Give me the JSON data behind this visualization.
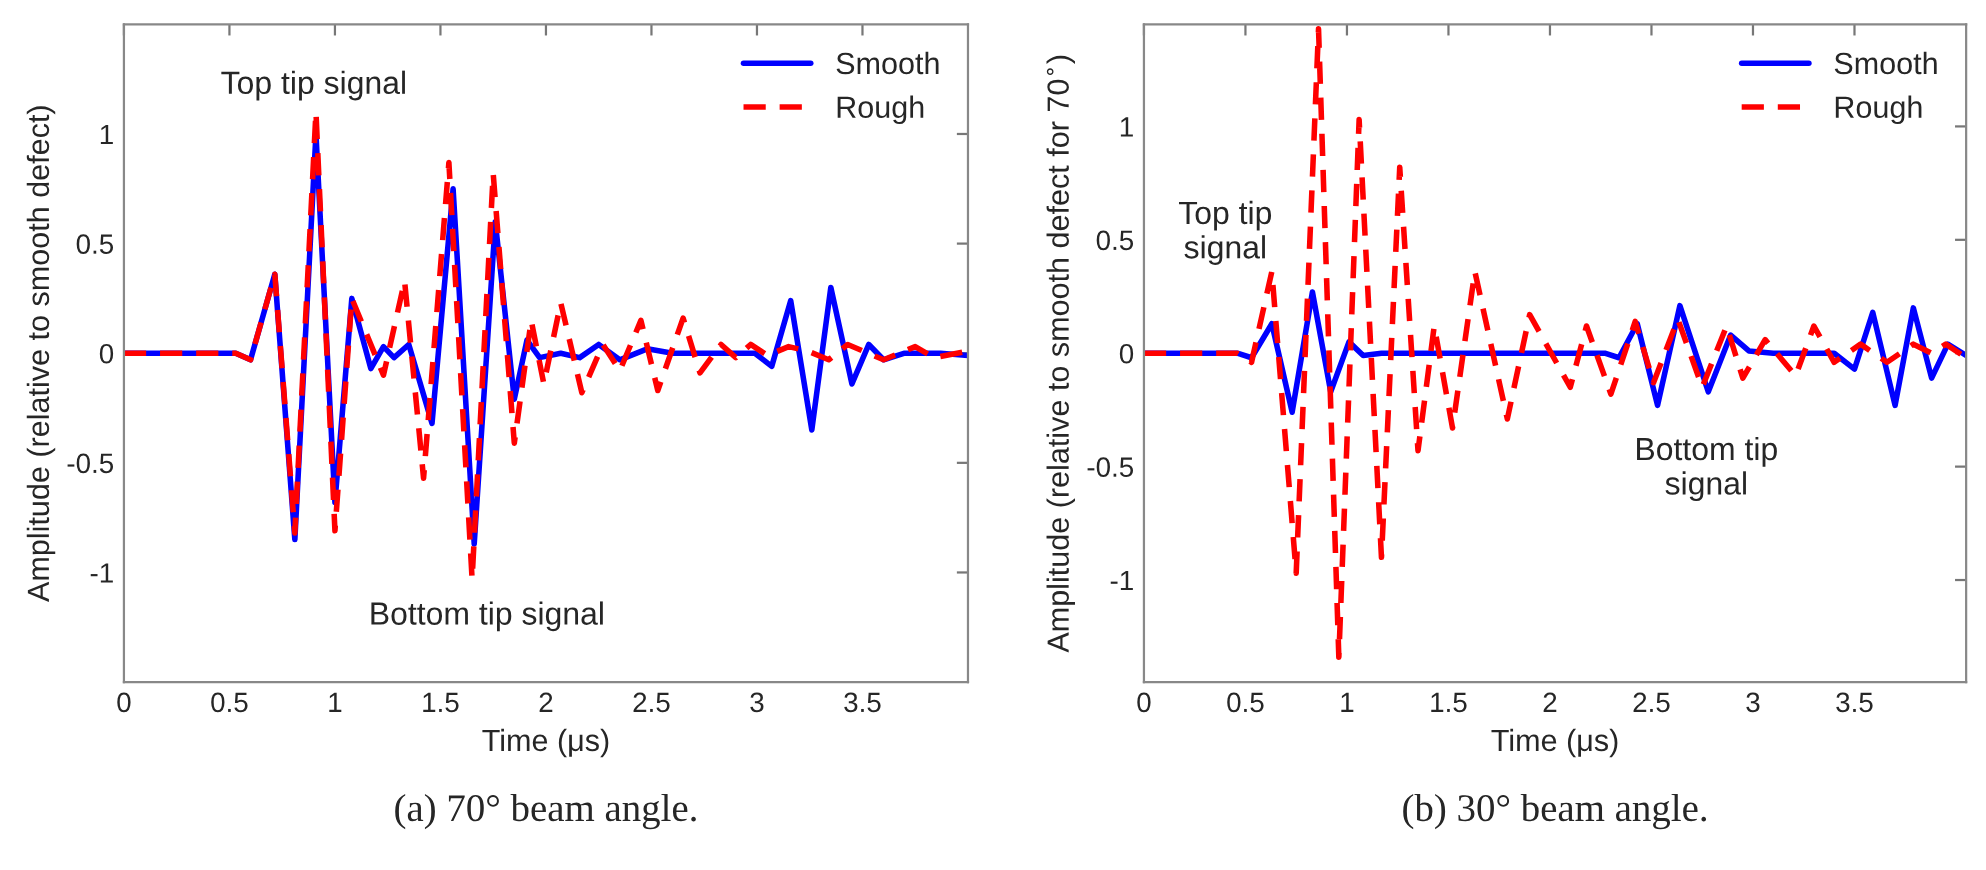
{
  "chart_data": [
    {
      "type": "line",
      "xlabel": "Time (μs)",
      "ylabel": "Amplitude (relative to smooth defect)",
      "xlim": [
        0,
        4
      ],
      "ylim": [
        -1.5,
        1.5
      ],
      "xticks": [
        0,
        0.5,
        1,
        1.5,
        2,
        2.5,
        3,
        3.5
      ],
      "yticks": [
        -1,
        -0.5,
        0,
        0.5,
        1
      ],
      "grid": false,
      "legend": "top right",
      "annotations": [
        "Top tip signal",
        "Bottom tip signal",
        "(a) 70° beam angle."
      ],
      "series": [
        {
          "name": "Smooth",
          "color": "#0000ff",
          "line_style": "solid",
          "x": [
            0,
            0.53,
            0.6,
            0.715,
            0.81,
            0.91,
            1.0,
            1.08,
            1.17,
            1.23,
            1.28,
            1.35,
            1.46,
            1.56,
            1.66,
            1.76,
            1.85,
            1.91,
            1.97,
            2.07,
            2.16,
            2.25,
            2.35,
            2.48,
            2.6,
            2.99,
            3.07,
            3.16,
            3.26,
            3.35,
            3.45,
            3.53,
            3.6,
            3.7,
            3.87,
            4.0
          ],
          "values": [
            0,
            0,
            -0.03,
            0.36,
            -0.85,
            1.0,
            -0.68,
            0.25,
            -0.07,
            0.03,
            -0.02,
            0.04,
            -0.32,
            0.75,
            -0.87,
            0.6,
            -0.21,
            0.06,
            -0.02,
            0,
            -0.02,
            0.04,
            -0.03,
            0.02,
            0,
            0,
            -0.06,
            0.24,
            -0.35,
            0.3,
            -0.14,
            0.04,
            -0.03,
            0,
            0,
            -0.01
          ]
        },
        {
          "name": "Rough",
          "color": "#ff0000",
          "line_style": "dashed",
          "x": [
            0,
            0.53,
            0.6,
            0.715,
            0.81,
            0.91,
            1.0,
            1.08,
            1.23,
            1.33,
            1.42,
            1.54,
            1.65,
            1.75,
            1.85,
            1.93,
            1.99,
            2.07,
            2.17,
            2.27,
            2.35,
            2.45,
            2.53,
            2.65,
            2.73,
            2.83,
            2.9,
            2.97,
            3.05,
            3.15,
            3.24,
            3.34,
            3.43,
            3.6,
            3.75,
            3.84,
            4.0
          ],
          "values": [
            0,
            0,
            -0.03,
            0.36,
            -0.82,
            1.1,
            -0.81,
            0.25,
            -0.1,
            0.33,
            -0.57,
            0.87,
            -1.03,
            0.82,
            -0.41,
            0.15,
            -0.14,
            0.23,
            -0.18,
            0.04,
            -0.08,
            0.15,
            -0.17,
            0.16,
            -0.09,
            0.04,
            -0.02,
            0.04,
            -0.01,
            0.03,
            0.01,
            -0.03,
            0.04,
            -0.03,
            0.03,
            -0.02,
            0.01
          ]
        }
      ]
    },
    {
      "type": "line",
      "xlabel": "Time (μs)",
      "ylabel": "Amplitude (relative to smooth defect for 70$^{∘}$)",
      "xlim": [
        0,
        4.05
      ],
      "ylim": [
        -1.45,
        1.45
      ],
      "xticks": [
        0,
        0.5,
        1,
        1.5,
        2,
        2.5,
        3,
        3.5
      ],
      "yticks": [
        -1,
        -0.5,
        0,
        0.5,
        1
      ],
      "grid": false,
      "legend": "top right",
      "annotations": [
        "Top tip\nsignal",
        "Bottom tip\nsignal",
        "(b) 30° beam angle."
      ],
      "series": [
        {
          "name": "Smooth",
          "color": "#0000ff",
          "line_style": "solid",
          "x": [
            0,
            0.46,
            0.53,
            0.63,
            0.73,
            0.83,
            0.92,
            1.01,
            1.08,
            1.17,
            2.27,
            2.34,
            2.43,
            2.53,
            2.64,
            2.78,
            2.89,
            2.98,
            3.1,
            3.4,
            3.5,
            3.59,
            3.7,
            3.79,
            3.88,
            3.96,
            4.05
          ],
          "values": [
            0,
            0,
            -0.02,
            0.13,
            -0.26,
            0.27,
            -0.17,
            0.05,
            -0.01,
            0,
            0,
            -0.02,
            0.13,
            -0.23,
            0.21,
            -0.17,
            0.08,
            0.01,
            0,
            0,
            -0.07,
            0.18,
            -0.23,
            0.2,
            -0.11,
            0.04,
            -0.01
          ]
        },
        {
          "name": "Rough",
          "color": "#ff0000",
          "line_style": "dashed",
          "x": [
            0,
            0.46,
            0.53,
            0.63,
            0.75,
            0.86,
            0.96,
            1.06,
            1.17,
            1.26,
            1.35,
            1.43,
            1.52,
            1.63,
            1.79,
            1.9,
            2.1,
            2.18,
            2.3,
            2.42,
            2.51,
            2.63,
            2.75,
            2.87,
            2.95,
            3.06,
            3.21,
            3.3,
            3.4,
            3.53,
            3.66,
            3.79,
            3.88,
            3.95,
            4.05
          ],
          "values": [
            0,
            0,
            -0.04,
            0.36,
            -0.97,
            1.43,
            -1.34,
            1.03,
            -0.9,
            0.82,
            -0.43,
            0.12,
            -0.33,
            0.36,
            -0.29,
            0.17,
            -0.15,
            0.12,
            -0.18,
            0.14,
            -0.13,
            0.15,
            -0.15,
            0.12,
            -0.11,
            0.06,
            -0.1,
            0.12,
            -0.04,
            0.04,
            -0.04,
            0.04,
            0,
            0.04,
            -0.02
          ]
        }
      ]
    }
  ]
}
